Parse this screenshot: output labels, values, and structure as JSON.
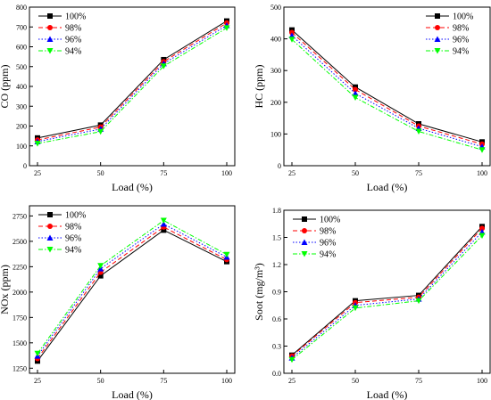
{
  "chart_data": [
    {
      "type": "line",
      "x": [
        25,
        50,
        75,
        100
      ],
      "xlabel": "Load (%)",
      "ylabel": "CO (ppm)",
      "ylim": [
        0,
        800
      ],
      "yticks": [
        0,
        100,
        200,
        300,
        400,
        500,
        600,
        700,
        800
      ],
      "ytick_labels": [
        "0",
        "100",
        "200",
        "300",
        "400",
        "500",
        "600",
        "700",
        "800"
      ],
      "legend": "top-left",
      "series": [
        {
          "name": "100%",
          "values": [
            140,
            205,
            535,
            730
          ]
        },
        {
          "name": "98%",
          "values": [
            130,
            195,
            525,
            720
          ]
        },
        {
          "name": "96%",
          "values": [
            122,
            185,
            515,
            708
          ]
        },
        {
          "name": "94%",
          "values": [
            112,
            172,
            502,
            695
          ]
        }
      ]
    },
    {
      "type": "line",
      "x": [
        25,
        50,
        75,
        100
      ],
      "xlabel": "Load (%)",
      "ylabel": "HC (ppm)",
      "ylim": [
        0,
        500
      ],
      "yticks": [
        0,
        100,
        200,
        300,
        400,
        500
      ],
      "ytick_labels": [
        "0",
        "100",
        "200",
        "300",
        "400",
        "500"
      ],
      "legend": "top-right",
      "series": [
        {
          "name": "100%",
          "values": [
            428,
            248,
            132,
            75
          ]
        },
        {
          "name": "98%",
          "values": [
            420,
            240,
            125,
            68
          ]
        },
        {
          "name": "96%",
          "values": [
            410,
            228,
            118,
            60
          ]
        },
        {
          "name": "94%",
          "values": [
            398,
            215,
            108,
            50
          ]
        }
      ]
    },
    {
      "type": "line",
      "x": [
        25,
        50,
        75,
        100
      ],
      "xlabel": "Load (%)",
      "ylabel": "NOx (ppm)",
      "ylim": [
        1200,
        2850
      ],
      "yticks": [
        1250,
        1500,
        1750,
        2000,
        2250,
        2500,
        2750
      ],
      "ytick_labels": [
        "1250",
        "1500",
        "1750",
        "2000",
        "2250",
        "2500",
        "2750"
      ],
      "legend": "top-left",
      "series": [
        {
          "name": "100%",
          "values": [
            1320,
            2160,
            2610,
            2300
          ]
        },
        {
          "name": "98%",
          "values": [
            1345,
            2195,
            2640,
            2320
          ]
        },
        {
          "name": "96%",
          "values": [
            1370,
            2230,
            2670,
            2345
          ]
        },
        {
          "name": "94%",
          "values": [
            1395,
            2260,
            2705,
            2370
          ]
        }
      ]
    },
    {
      "type": "line",
      "x": [
        25,
        50,
        75,
        100
      ],
      "xlabel": "Load (%)",
      "ylabel": "Soot (mg/m³)",
      "ylim": [
        0,
        1.8
      ],
      "yticks": [
        0,
        0.3,
        0.6,
        0.9,
        1.2,
        1.5,
        1.8
      ],
      "ytick_labels": [
        "0.0",
        "0.3",
        "0.6",
        "0.9",
        "1.2",
        "1.5",
        "1.8"
      ],
      "legend": "top-left",
      "series": [
        {
          "name": "100%",
          "values": [
            0.2,
            0.8,
            0.86,
            1.62
          ]
        },
        {
          "name": "98%",
          "values": [
            0.19,
            0.78,
            0.84,
            1.6
          ]
        },
        {
          "name": "96%",
          "values": [
            0.17,
            0.75,
            0.82,
            1.56
          ]
        },
        {
          "name": "94%",
          "values": [
            0.15,
            0.72,
            0.8,
            1.52
          ]
        }
      ]
    }
  ],
  "style": {
    "series_colors": [
      "#000000",
      "#ff0000",
      "#0000ff",
      "#00ff00"
    ],
    "series_markers": [
      "square",
      "circle",
      "triangle-up",
      "triangle-down"
    ],
    "series_dashes": [
      "solid",
      "dashed",
      "dotted",
      "dash-dot"
    ]
  }
}
